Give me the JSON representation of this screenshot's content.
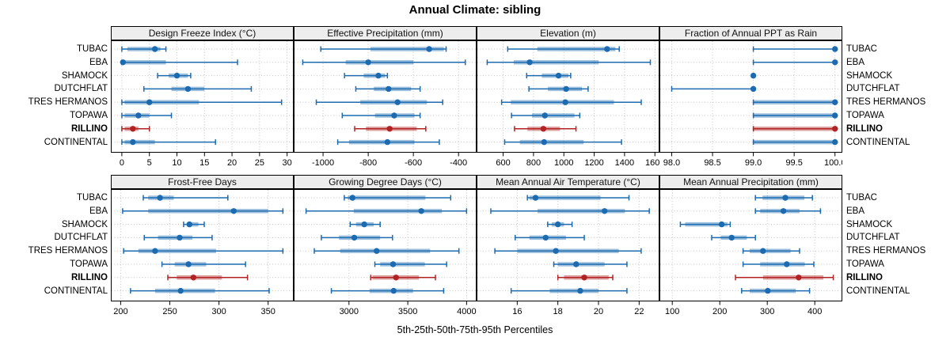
{
  "title": "Annual Climate: sibling",
  "footer": "5th-25th-50th-75th-95th Percentiles",
  "sites": [
    "TUBAC",
    "EBA",
    "SHAMOCK",
    "DUTCHFLAT",
    "TRES HERMANOS",
    "TOPAWA",
    "RILLINO",
    "CONTINENTAL"
  ],
  "highlight_site": "RILLINO",
  "colors": {
    "series": "#1c6bb0",
    "highlight": "#b22222",
    "grid": "#c4c4c4",
    "strip_bg": "#ededed",
    "border": "#000000"
  },
  "chart_data": {
    "type": "dotplot-grid",
    "title": "Annual Climate: sibling",
    "caption": "5th-25th-50th-75th-95th Percentiles",
    "percentile_order": [
      "p5",
      "p25",
      "p50",
      "p75",
      "p95"
    ],
    "layout": {
      "rows": 2,
      "cols": 4,
      "grid": "dotted",
      "site_labels": "both-sides"
    },
    "panels": [
      {
        "title": "Design Freeze Index (°C)",
        "xlim": [
          -2,
          31.2
        ],
        "ticks": [
          0,
          5,
          10,
          15,
          20,
          25,
          30
        ],
        "tick_labels": [
          "0",
          "5",
          "10",
          "15",
          "20",
          "25",
          "30"
        ],
        "values": {
          "TUBAC": [
            0,
            1,
            6,
            7,
            8
          ],
          "EBA": [
            0,
            0,
            0.2,
            8,
            21
          ],
          "SHAMOCK": [
            6.5,
            8.5,
            10,
            12,
            12.5
          ],
          "DUTCHFLAT": [
            4,
            9,
            12,
            15,
            23.5
          ],
          "TRES HERMANOS": [
            0,
            0.5,
            5,
            14,
            29
          ],
          "TOPAWA": [
            0,
            0.5,
            3,
            5,
            9
          ],
          "RILLINO": [
            0,
            0.5,
            2,
            3,
            5
          ],
          "CONTINENTAL": [
            0,
            0.5,
            2,
            6,
            17
          ]
        }
      },
      {
        "title": "Effective Precipitation (mm)",
        "xlim": [
          -1130,
          -320
        ],
        "ticks": [
          -1000,
          -800,
          -600,
          -400
        ],
        "tick_labels": [
          "-1000",
          "-800",
          "-600",
          "-400"
        ],
        "values": {
          "TUBAC": [
            -1010,
            -790,
            -530,
            -465,
            -455
          ],
          "EBA": [
            -1090,
            -900,
            -800,
            -600,
            -370
          ],
          "SHAMOCK": [
            -905,
            -820,
            -755,
            -725,
            -715
          ],
          "DUTCHFLAT": [
            -855,
            -775,
            -710,
            -610,
            -570
          ],
          "TRES HERMANOS": [
            -1030,
            -835,
            -670,
            -540,
            -470
          ],
          "TOPAWA": [
            -915,
            -770,
            -685,
            -595,
            -570
          ],
          "RILLINO": [
            -860,
            -810,
            -705,
            -585,
            -545
          ],
          "CONTINENTAL": [
            -935,
            -885,
            -715,
            -595,
            -485
          ]
        }
      },
      {
        "title": "Elevation (m)",
        "xlim": [
          425,
          1630
        ],
        "ticks": [
          600,
          800,
          1000,
          1200,
          1400,
          1600
        ],
        "tick_labels": [
          "600",
          "800",
          "1000",
          "1200",
          "1400",
          "1600"
        ],
        "values": {
          "TUBAC": [
            630,
            825,
            1285,
            1340,
            1365
          ],
          "EBA": [
            495,
            670,
            775,
            1230,
            1570
          ],
          "SHAMOCK": [
            755,
            855,
            965,
            1030,
            1045
          ],
          "DUTCHFLAT": [
            770,
            895,
            1015,
            1120,
            1160
          ],
          "TRES HERMANOS": [
            590,
            650,
            1010,
            1330,
            1510
          ],
          "TOPAWA": [
            655,
            790,
            875,
            1070,
            1105
          ],
          "RILLINO": [
            675,
            760,
            865,
            975,
            1080
          ],
          "CONTINENTAL": [
            610,
            710,
            870,
            1130,
            1380
          ]
        }
      },
      {
        "title": "Fraction of Annual PPT as Rain",
        "xlim": [
          97.85,
          100.09
        ],
        "ticks": [
          98.0,
          98.5,
          99.0,
          99.5,
          100.0
        ],
        "tick_labels": [
          "98.0",
          "98.5",
          "99.0",
          "99.5",
          "100.0"
        ],
        "values": {
          "TUBAC": [
            99,
            100,
            100,
            100,
            100
          ],
          "EBA": [
            99,
            100,
            100,
            100,
            100
          ],
          "SHAMOCK": [
            99,
            99,
            99,
            99,
            99
          ],
          "DUTCHFLAT": [
            98,
            99,
            99,
            99,
            99
          ],
          "TRES HERMANOS": [
            99,
            99,
            100,
            100,
            100
          ],
          "TOPAWA": [
            99,
            99,
            100,
            100,
            100
          ],
          "RILLINO": [
            99,
            99,
            100,
            100,
            100
          ],
          "CONTINENTAL": [
            99,
            99,
            100,
            100,
            100
          ]
        }
      },
      {
        "title": "Frost-Free Days",
        "xlim": [
          190,
          376
        ],
        "ticks": [
          200,
          250,
          300,
          350
        ],
        "tick_labels": [
          "200",
          "250",
          "300",
          "350"
        ],
        "values": {
          "TUBAC": [
            223,
            228,
            240,
            254,
            309
          ],
          "EBA": [
            202,
            228,
            315,
            350,
            365
          ],
          "SHAMOCK": [
            264,
            267,
            270,
            279,
            285
          ],
          "DUTCHFLAT": [
            224,
            238,
            260,
            273,
            293
          ],
          "TRES HERMANOS": [
            203,
            218,
            235,
            297,
            365
          ],
          "TOPAWA": [
            242,
            255,
            269,
            287,
            327
          ],
          "RILLINO": [
            248,
            257,
            274,
            303,
            329
          ],
          "CONTINENTAL": [
            210,
            235,
            261,
            296,
            351
          ]
        }
      },
      {
        "title": "Growing Degree Days (°C)",
        "xlim": [
          2530,
          4085
        ],
        "ticks": [
          3000,
          3500,
          4000
        ],
        "tick_labels": [
          "3000",
          "3500",
          "4000"
        ],
        "values": {
          "TUBAC": [
            2960,
            2990,
            3030,
            3650,
            3865
          ],
          "EBA": [
            2635,
            3040,
            3615,
            3790,
            4000
          ],
          "SHAMOCK": [
            3010,
            3060,
            3130,
            3210,
            3265
          ],
          "DUTCHFLAT": [
            2765,
            2915,
            3045,
            3265,
            3370
          ],
          "TRES HERMANOS": [
            2705,
            2925,
            3235,
            3690,
            3935
          ],
          "TOPAWA": [
            3220,
            3265,
            3375,
            3645,
            3830
          ],
          "RILLINO": [
            3185,
            3200,
            3400,
            3595,
            3735
          ],
          "CONTINENTAL": [
            2850,
            3175,
            3380,
            3545,
            3805
          ]
        }
      },
      {
        "title": "Mean Annual Air Temperature (°C)",
        "xlim": [
          14,
          23
        ],
        "ticks": [
          16,
          18,
          20,
          22
        ],
        "tick_labels": [
          "16",
          "18",
          "20",
          "22"
        ],
        "values": {
          "TUBAC": [
            16.5,
            16.6,
            16.9,
            20.1,
            21.5
          ],
          "EBA": [
            14.7,
            17.0,
            20.3,
            21.3,
            22.5
          ],
          "SHAMOCK": [
            17.5,
            17.7,
            18.0,
            18.3,
            18.7
          ],
          "DUTCHFLAT": [
            15.9,
            16.6,
            17.4,
            18.4,
            19.3
          ],
          "TRES HERMANOS": [
            14.9,
            16.0,
            17.9,
            21.0,
            22.1
          ],
          "TOPAWA": [
            17.8,
            18.0,
            18.9,
            20.3,
            21.4
          ],
          "RILLINO": [
            18.0,
            18.3,
            19.3,
            20.5,
            20.7
          ],
          "CONTINENTAL": [
            15.7,
            17.6,
            19.1,
            20.0,
            21.4
          ]
        }
      },
      {
        "title": "Mean Annual Precipitation (mm)",
        "xlim": [
          73,
          458
        ],
        "ticks": [
          100,
          200,
          300,
          400
        ],
        "tick_labels": [
          "100",
          "200",
          "300",
          "400"
        ],
        "values": {
          "TUBAC": [
            275,
            290,
            338,
            378,
            395
          ],
          "EBA": [
            275,
            285,
            334,
            368,
            412
          ],
          "SHAMOCK": [
            117,
            127,
            204,
            216,
            222
          ],
          "DUTCHFLAT": [
            183,
            202,
            225,
            257,
            275
          ],
          "TRES HERMANOS": [
            249,
            263,
            291,
            349,
            368
          ],
          "TOPAWA": [
            249,
            285,
            341,
            379,
            398
          ],
          "RILLINO": [
            233,
            291,
            366,
            418,
            439
          ],
          "CONTINENTAL": [
            246,
            263,
            301,
            360,
            389
          ]
        }
      }
    ]
  }
}
